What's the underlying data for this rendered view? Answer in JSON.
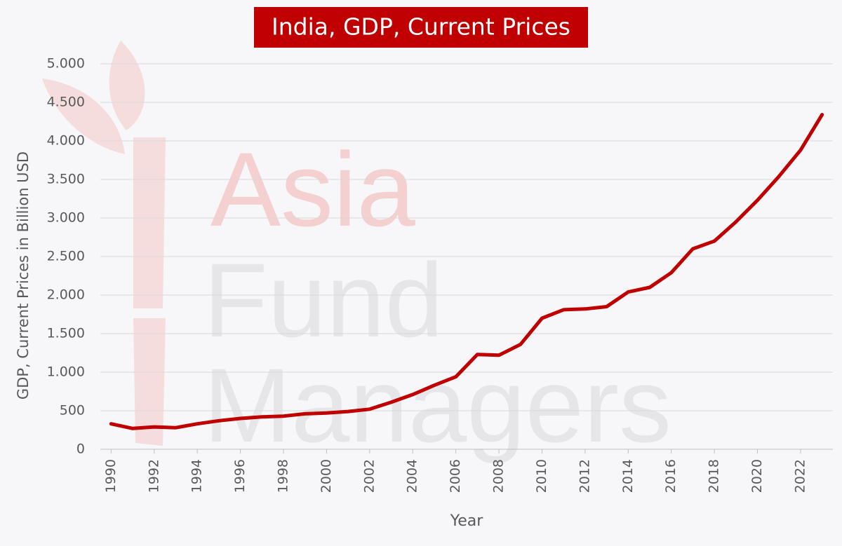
{
  "chart_data": {
    "type": "line",
    "title": "India, GDP, Current Prices",
    "watermark": [
      "Asia",
      "Fund",
      "Managers"
    ],
    "x_label": "Year",
    "y_label": "GDP, Current Prices in Billion USD",
    "series": [
      {
        "name": "India",
        "color": "#c00000",
        "x": [
          1990,
          1991,
          1992,
          1993,
          1994,
          1995,
          1996,
          1997,
          1998,
          1999,
          2000,
          2001,
          2002,
          2003,
          2004,
          2005,
          2006,
          2007,
          2008,
          2009,
          2010,
          2011,
          2012,
          2013,
          2014,
          2015,
          2016,
          2017,
          2018,
          2019,
          2020,
          2021,
          2022,
          2023
        ],
        "values": [
          330,
          270,
          290,
          280,
          330,
          370,
          400,
          420,
          430,
          460,
          470,
          490,
          520,
          610,
          710,
          830,
          940,
          1230,
          1220,
          1360,
          1700,
          1810,
          1820,
          1850,
          2040,
          2100,
          2290,
          2600,
          2700,
          2950,
          3230,
          3540,
          3880,
          4340
        ]
      }
    ],
    "xlim": [
      1989.5,
      2023.5
    ],
    "xticks": [
      1990,
      1992,
      1994,
      1996,
      1998,
      2000,
      2002,
      2004,
      2006,
      2008,
      2010,
      2012,
      2014,
      2016,
      2018,
      2020,
      2022
    ],
    "ylim": [
      0,
      5000
    ],
    "yticks": [
      0,
      500,
      {
        "value": 1000,
        "label": "1.000"
      },
      {
        "value": 1500,
        "label": "1.500"
      },
      {
        "value": 2000,
        "label": "2.000"
      },
      {
        "value": 2500,
        "label": "2.500"
      },
      {
        "value": 3000,
        "label": "3.000"
      },
      {
        "value": 3500,
        "label": "3.500"
      },
      {
        "value": 4000,
        "label": "4.000"
      },
      {
        "value": 4500,
        "label": "4.500"
      },
      {
        "value": 5000,
        "label": "5.000"
      }
    ],
    "grid": true
  }
}
